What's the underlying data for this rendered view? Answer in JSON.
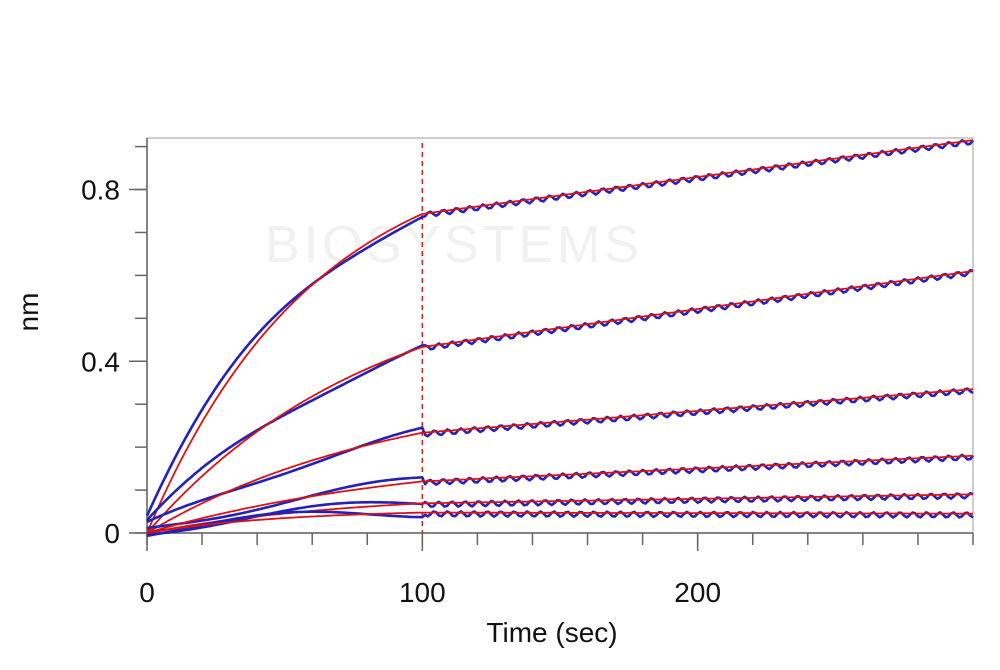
{
  "chart_data": {
    "type": "line",
    "xlabel": "Time (sec)",
    "ylabel": "nm",
    "xlim": [
      0,
      300
    ],
    "ylim": [
      0,
      0.92
    ],
    "x_ticks": [
      0,
      100,
      200
    ],
    "y_ticks": [
      0,
      0.4,
      0.8
    ],
    "y_tick_labels": [
      "0",
      "0.4",
      "0.8"
    ],
    "x_tick_labels": [
      "0",
      "100",
      "200"
    ],
    "x_minor_step": 20,
    "y_minor_step": 0.1,
    "association_end": 100,
    "grid": false,
    "legend": "none",
    "series": [
      {
        "plateau": 0.92,
        "end_value": 0.915,
        "k": 0.0165,
        "start": 0.04
      },
      {
        "plateau": 0.62,
        "end_value": 0.61,
        "k": 0.012,
        "start": 0.02
      },
      {
        "plateau": 0.35,
        "end_value": 0.335,
        "k": 0.011,
        "start": 0.015
      },
      {
        "plateau": 0.19,
        "end_value": 0.18,
        "k": 0.01,
        "start": 0.01
      },
      {
        "plateau": 0.095,
        "end_value": 0.09,
        "k": 0.013,
        "start": 0.005
      },
      {
        "plateau": 0.055,
        "end_value": 0.045,
        "k": 0.02,
        "start": 0.005
      }
    ],
    "colors": {
      "raw": "#2222bb",
      "fit": "#dd1111",
      "axis": "#666666",
      "marker_line": "#cc2222"
    }
  },
  "watermark": {
    "text": "BIOSYSTEMS"
  }
}
